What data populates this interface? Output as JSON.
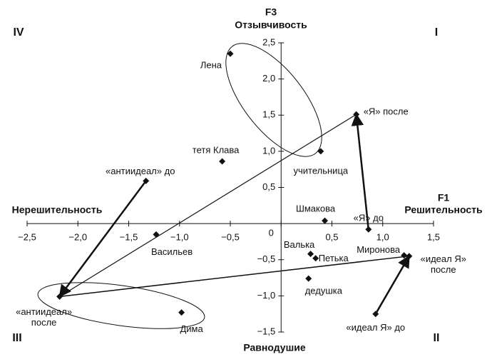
{
  "chart_data": {
    "type": "scatter",
    "y_title": "F3",
    "y_label_top": "Отзывчивость",
    "y_label_bottom": "Равнодушие",
    "x_title": "F1",
    "x_label_right": "Решительность",
    "x_label_left": "Нерешительность",
    "quadrants": [
      "I",
      "II",
      "III",
      "IV"
    ],
    "xlim": [
      -2.5,
      1.5
    ],
    "ylim": [
      -1.5,
      2.5
    ],
    "xticks": [
      {
        "value": -2.5,
        "label": "−2,5"
      },
      {
        "value": -2,
        "label": "−2,0"
      },
      {
        "value": -1.5,
        "label": "−1,5"
      },
      {
        "value": -1,
        "label": "−1,0"
      },
      {
        "value": -0.5,
        "label": "−0,5"
      },
      0,
      {
        "value": 0.5,
        "label": "0,5"
      },
      {
        "value": 1,
        "label": "1,0"
      },
      {
        "value": 1.5,
        "label": "1,5"
      }
    ],
    "yticks": [
      {
        "value": -1.5,
        "label": "−1,5"
      },
      {
        "value": -1,
        "label": "−1,0"
      },
      {
        "value": -0.5,
        "label": "−0,5"
      },
      {
        "value": 0.5,
        "label": "0,5"
      },
      {
        "value": 1,
        "label": "1,0"
      },
      {
        "value": 1.5,
        "label": "1,5"
      },
      {
        "value": 2,
        "label": "2,0"
      },
      {
        "value": 2.5,
        "label": "2,5"
      }
    ],
    "color": "#111111",
    "points": [
      {
        "label": [
          "Лена"
        ],
        "x": -0.5,
        "y": 2.35
      },
      {
        "label": [
          "учительница"
        ],
        "x": 0.39,
        "y": 1.0
      },
      {
        "label": [
          "«Я» после"
        ],
        "x": 0.74,
        "y": 1.51
      },
      {
        "label": [
          "тетя Клава"
        ],
        "x": -0.58,
        "y": 0.86
      },
      {
        "label": [
          "«антиидеал» до"
        ],
        "x": -1.33,
        "y": 0.59
      },
      {
        "label": [
          "Шмакова"
        ],
        "x": 0.43,
        "y": 0.04
      },
      {
        "label": [
          "«Я» до"
        ],
        "x": 0.86,
        "y": -0.08
      },
      {
        "label": [
          "Васильев"
        ],
        "x": -1.23,
        "y": -0.15
      },
      {
        "label": [
          "Валька"
        ],
        "x": 0.29,
        "y": -0.42
      },
      {
        "label": [
          "Петька"
        ],
        "x": 0.34,
        "y": -0.48
      },
      {
        "label": [
          "Миронова"
        ],
        "x": 1.21,
        "y": -0.44
      },
      {
        "label": [
          "«идеал Я»",
          "после"
        ],
        "x": 1.26,
        "y": -0.45
      },
      {
        "label": [
          "дедушка"
        ],
        "x": 0.27,
        "y": -0.76
      },
      {
        "label": [
          "«антиидеал»",
          "после"
        ],
        "x": -2.18,
        "y": -1.01
      },
      {
        "label": [
          "Дима"
        ],
        "x": -0.98,
        "y": -1.23
      },
      {
        "label": [
          "«идеал Я» до"
        ],
        "x": 0.93,
        "y": -1.25
      }
    ]
  }
}
